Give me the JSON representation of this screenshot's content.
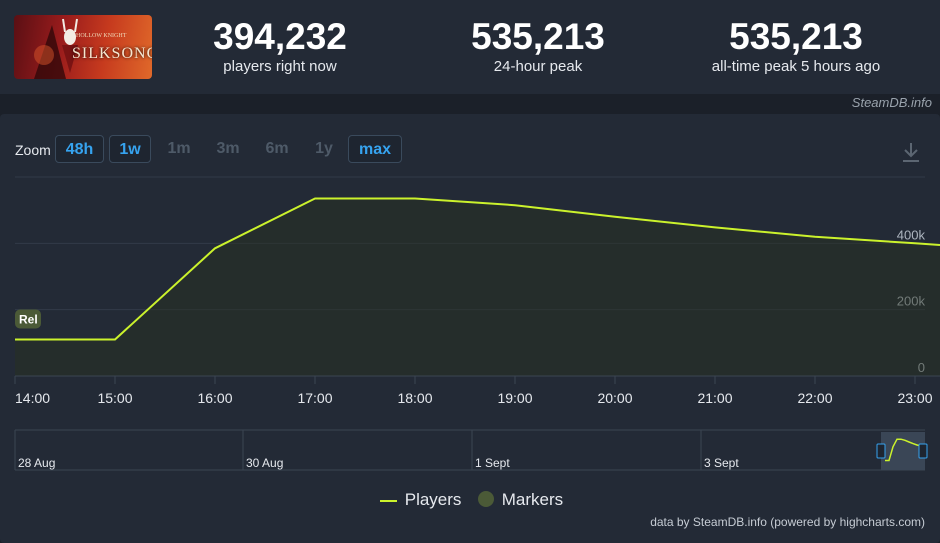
{
  "game": {
    "logo_small": "HOLLOW KNIGHT",
    "logo_title": "SILKSONG"
  },
  "stats": [
    {
      "value": "394,232",
      "label": "players right now"
    },
    {
      "value": "535,213",
      "label": "24-hour peak"
    },
    {
      "value": "535,213",
      "label": "all-time peak 5 hours ago"
    }
  ],
  "watermark": "SteamDB.info",
  "zoom": {
    "label": "Zoom",
    "buttons": [
      {
        "label": "48h",
        "active": true
      },
      {
        "label": "1w",
        "active": true
      },
      {
        "label": "1m",
        "active": false
      },
      {
        "label": "3m",
        "active": false
      },
      {
        "label": "6m",
        "active": false
      },
      {
        "label": "1y",
        "active": false
      },
      {
        "label": "max",
        "active": true
      }
    ]
  },
  "icons": {
    "download": "download-icon"
  },
  "colors": {
    "players_line": "#cbf22c",
    "marker": "#4b5a37",
    "accent": "#36a3ef",
    "background": "#1b2029",
    "panel": "#232a36"
  },
  "chart_data": {
    "type": "line",
    "x": [
      "14:00",
      "15:00",
      "16:00",
      "17:00",
      "18:00",
      "19:00",
      "20:00",
      "21:00",
      "22:00",
      "23:00"
    ],
    "series": [
      {
        "name": "Players",
        "values": [
          110000,
          110000,
          385000,
          535213,
          535213,
          515000,
          480000,
          448000,
          420000,
          400000
        ]
      }
    ],
    "y_ticks": [
      "0",
      "200k",
      "400k"
    ],
    "ylim": [
      0,
      600000
    ],
    "grid": true,
    "markers": [
      {
        "label": "Rel",
        "x": "14:00"
      }
    ],
    "navigator_labels": [
      "28 Aug",
      "30 Aug",
      "1 Sept",
      "3 Sept"
    ],
    "legend": [
      "Players",
      "Markers"
    ],
    "legend_position": "bottom-center",
    "credits": "data by SteamDB.info (powered by highcharts.com)"
  }
}
